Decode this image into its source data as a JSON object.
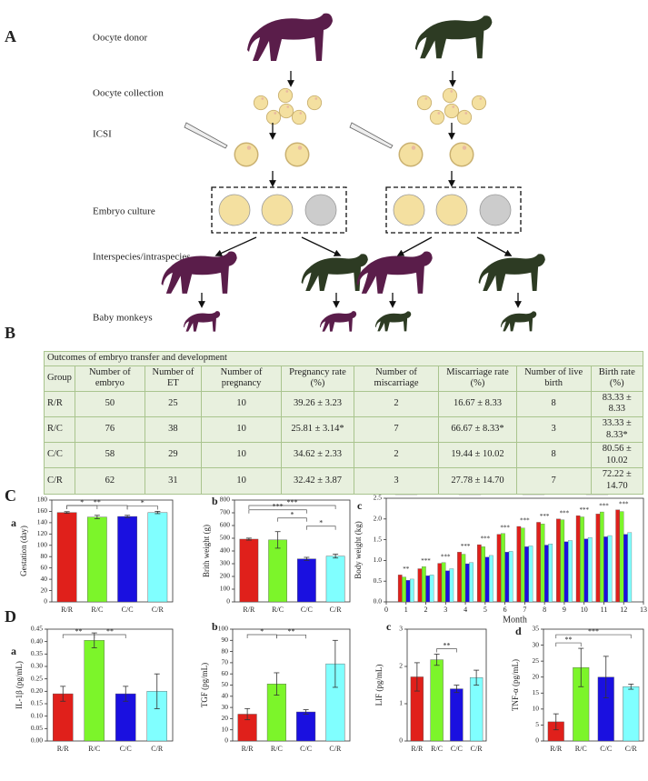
{
  "panel_a": {
    "label": "A",
    "steps": [
      "Oocyte donor",
      "Oocyte collection",
      "ICSI",
      "Embryo culture",
      "Interspecies/intraspecies",
      "Baby monkeys"
    ]
  },
  "table": {
    "label": "B",
    "title": "Outcomes of embryo transfer and development",
    "header": [
      "Group",
      "Number of embryo",
      "Number of ET",
      "Number of pregnancy",
      "Pregnancy rate (%)",
      "Number of miscarriage",
      "Miscarriage rate (%)",
      "Number of live birth",
      "Birth rate (%)"
    ],
    "rows": [
      [
        "R/R",
        50,
        25,
        10,
        "39.26 ± 3.23",
        2,
        "16.67 ± 8.33",
        8,
        "83.33 ± 8.33"
      ],
      [
        "R/C",
        76,
        38,
        10,
        "25.81 ± 3.14*",
        7,
        "66.67 ± 8.33*",
        3,
        "33.33 ± 8.33*"
      ],
      [
        "C/C",
        58,
        29,
        10,
        "34.62 ± 2.33",
        2,
        "19.44 ± 10.02",
        8,
        "80.56 ± 10.02"
      ],
      [
        "C/R",
        62,
        31,
        10,
        "32.42 ± 3.87",
        3,
        "27.78 ± 14.70",
        7,
        "72.22 ± 14.70"
      ]
    ]
  },
  "figure_labels": [
    "C",
    "D"
  ],
  "chart_data": [
    {
      "type": "bar",
      "label": "a",
      "ylabel": "Gestation (day)",
      "categories": [
        "R/R",
        "R/C",
        "C/C",
        "C/R"
      ],
      "colors": [
        "#e0201b",
        "#7cf52a",
        "#1a10e0",
        "#80ffff"
      ],
      "values": [
        158,
        150,
        151,
        158
      ],
      "errors": [
        1.5,
        3,
        2,
        2
      ],
      "ylim": [
        0,
        180
      ],
      "yticks": [
        0,
        20,
        40,
        60,
        80,
        100,
        120,
        140,
        160,
        180
      ],
      "annotations": [
        {
          "text": "**",
          "from": "R/R",
          "to": "C/C"
        },
        {
          "text": "*",
          "from": "R/R",
          "to": "R/C"
        },
        {
          "text": "*",
          "from": "C/C",
          "to": "C/R"
        }
      ]
    },
    {
      "type": "bar",
      "label": "b",
      "ylabel": "Brith weight (g)",
      "categories": [
        "R/R",
        "R/C",
        "C/C",
        "C/R"
      ],
      "colors": [
        "#e0201b",
        "#7cf52a",
        "#1a10e0",
        "#80ffff"
      ],
      "values": [
        493,
        487,
        338,
        360
      ],
      "errors": [
        8,
        65,
        12,
        15
      ],
      "ylim": [
        0,
        800
      ],
      "yticks": [
        0,
        100,
        200,
        300,
        400,
        500,
        600,
        700,
        800
      ],
      "annotations": [
        {
          "text": "***",
          "from": "R/R",
          "to": "C/R"
        },
        {
          "text": "***",
          "from": "R/R",
          "to": "C/C"
        },
        {
          "text": "*",
          "from": "R/C",
          "to": "C/C"
        },
        {
          "text": "*",
          "from": "C/C",
          "to": "C/R"
        }
      ]
    },
    {
      "type": "grouped-bar",
      "label": "c",
      "xlabel": "Month",
      "ylabel": "Body weight (kg)",
      "x": [
        1,
        2,
        3,
        4,
        5,
        6,
        7,
        8,
        9,
        10,
        11,
        12
      ],
      "xlim": [
        0,
        13
      ],
      "xticks": [
        0,
        1,
        2,
        3,
        4,
        5,
        6,
        7,
        8,
        9,
        10,
        11,
        12,
        13
      ],
      "ylim": [
        0,
        2.5
      ],
      "yticks": [
        {
          "value": 0,
          "label": "0.0"
        },
        0.5,
        {
          "value": 1,
          "label": "1.0"
        },
        1.5,
        {
          "value": 2,
          "label": "2.0"
        },
        2.5
      ],
      "significance": [
        "**",
        "***",
        "***",
        "***",
        "***",
        "***",
        "***",
        "***",
        "***",
        "***",
        "***",
        "***"
      ],
      "series": [
        {
          "name": "R/R",
          "color": "#e0201b",
          "values": [
            0.65,
            0.8,
            0.93,
            1.2,
            1.38,
            1.63,
            1.82,
            1.92,
            2.0,
            2.08,
            2.12,
            2.22
          ]
        },
        {
          "name": "R/C",
          "color": "#7cf52a",
          "values": [
            0.6,
            0.85,
            0.95,
            1.15,
            1.33,
            1.65,
            1.78,
            1.88,
            1.98,
            2.05,
            2.17,
            2.18
          ]
        },
        {
          "name": "C/C",
          "color": "#1a10e0",
          "values": [
            0.52,
            0.63,
            0.75,
            0.92,
            1.08,
            1.2,
            1.33,
            1.37,
            1.45,
            1.52,
            1.57,
            1.63
          ]
        },
        {
          "name": "C/R",
          "color": "#80ffff",
          "values": [
            0.55,
            0.65,
            0.8,
            0.95,
            1.12,
            1.22,
            1.35,
            1.4,
            1.48,
            1.55,
            1.6,
            1.67
          ]
        }
      ]
    },
    {
      "type": "bar",
      "label": "a",
      "ylabel": "IL-1β (pg/mL)",
      "categories": [
        "R/R",
        "R/C",
        "C/C",
        "C/R"
      ],
      "colors": [
        "#e0201b",
        "#7cf52a",
        "#1a10e0",
        "#80ffff"
      ],
      "values": [
        0.19,
        0.405,
        0.19,
        0.2
      ],
      "errors": [
        0.03,
        0.03,
        0.03,
        0.07
      ],
      "ylim": [
        0,
        0.45
      ],
      "yticks": [
        {
          "value": 0,
          "label": "0.00"
        },
        0.05,
        {
          "value": 0.1,
          "label": "0.10"
        },
        0.15,
        {
          "value": 0.2,
          "label": "0.20"
        },
        0.25,
        {
          "value": 0.3,
          "label": "0.30"
        },
        0.35,
        {
          "value": 0.4,
          "label": "0.40"
        },
        0.45
      ],
      "annotations": [
        {
          "text": "**",
          "from": "R/R",
          "to": "R/C"
        },
        {
          "text": "**",
          "from": "R/C",
          "to": "C/C"
        }
      ]
    },
    {
      "type": "bar",
      "label": "b",
      "ylabel": "TGF (pg/mL)",
      "categories": [
        "R/R",
        "R/C",
        "C/C",
        "C/R"
      ],
      "colors": [
        "#e0201b",
        "#7cf52a",
        "#1a10e0",
        "#80ffff"
      ],
      "values": [
        24,
        51,
        26,
        69
      ],
      "errors": [
        5,
        10,
        2,
        21
      ],
      "ylim": [
        0,
        100
      ],
      "yticks": [
        0,
        10,
        20,
        30,
        40,
        50,
        60,
        70,
        80,
        90,
        100
      ],
      "annotations": [
        {
          "text": "*",
          "from": "R/R",
          "to": "R/C"
        },
        {
          "text": "**",
          "from": "R/C",
          "to": "C/C"
        }
      ]
    },
    {
      "type": "bar",
      "label": "c",
      "ylabel": "LIF (pg/mL)",
      "categories": [
        "R/R",
        "R/C",
        "C/C",
        "C/R"
      ],
      "colors": [
        "#e0201b",
        "#7cf52a",
        "#1a10e0",
        "#80ffff"
      ],
      "values": [
        1.72,
        2.18,
        1.4,
        1.7
      ],
      "errors": [
        0.38,
        0.15,
        0.1,
        0.2
      ],
      "ylim": [
        0,
        3
      ],
      "yticks": [
        0,
        1,
        2,
        3
      ],
      "annotations": [
        {
          "text": "**",
          "from": "R/C",
          "to": "C/C"
        }
      ]
    },
    {
      "type": "bar",
      "label": "d",
      "ylabel": "TNF-α (pg/mL)",
      "categories": [
        "R/R",
        "R/C",
        "C/C",
        "C/R"
      ],
      "colors": [
        "#e0201b",
        "#7cf52a",
        "#1a10e0",
        "#80ffff"
      ],
      "values": [
        6,
        23,
        20,
        17
      ],
      "errors": [
        2.5,
        6,
        6.5,
        0.8
      ],
      "ylim": [
        0,
        35
      ],
      "yticks": [
        0,
        5,
        10,
        15,
        20,
        25,
        30,
        35
      ],
      "annotations": [
        {
          "text": "***",
          "from": "R/R",
          "to": "C/R"
        },
        {
          "text": "**",
          "from": "R/R",
          "to": "R/C"
        }
      ]
    }
  ]
}
